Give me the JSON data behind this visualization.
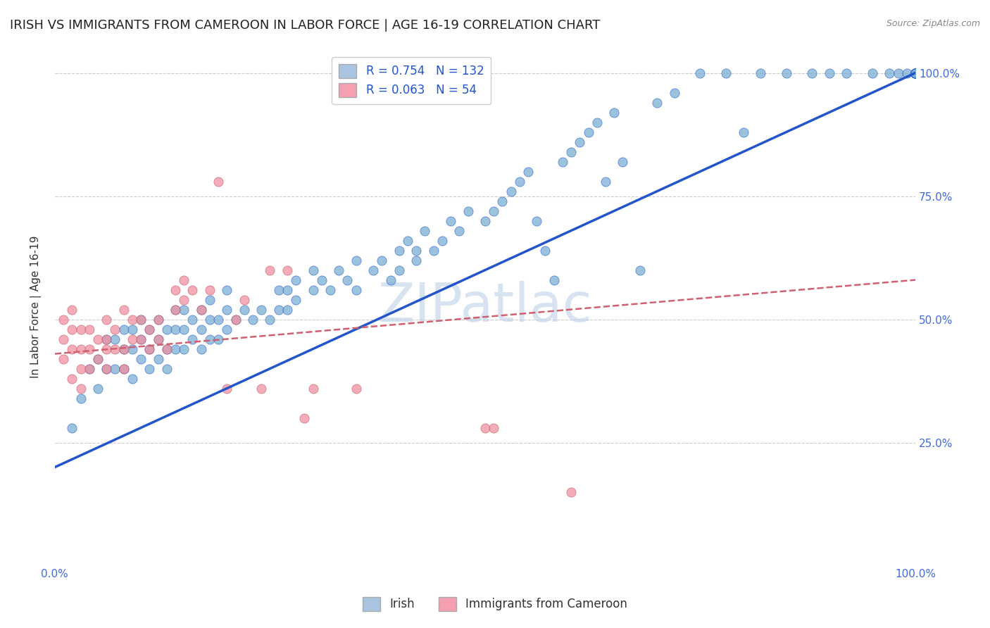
{
  "title": "IRISH VS IMMIGRANTS FROM CAMEROON IN LABOR FORCE | AGE 16-19 CORRELATION CHART",
  "source": "Source: ZipAtlas.com",
  "ylabel": "In Labor Force | Age 16-19",
  "xlim": [
    0.0,
    1.0
  ],
  "ylim": [
    0.0,
    1.05
  ],
  "ytick_labels": [
    "25.0%",
    "50.0%",
    "75.0%",
    "100.0%"
  ],
  "ytick_positions": [
    0.25,
    0.5,
    0.75,
    1.0
  ],
  "watermark": "ZIPatlас",
  "legend_irish_color": "#a8c4e0",
  "legend_cameroon_color": "#f4a0b0",
  "irish_R": "0.754",
  "irish_N": "132",
  "cameroon_R": "0.063",
  "cameroon_N": "54",
  "irish_scatter_color": "#7bafd4",
  "cameroon_scatter_color": "#f090a0",
  "irish_line_color": "#2255cc",
  "cameroon_line_color": "#d06070",
  "title_fontsize": 13,
  "axis_label_fontsize": 11,
  "tick_fontsize": 11,
  "irish_x": [
    0.02,
    0.03,
    0.04,
    0.05,
    0.05,
    0.06,
    0.06,
    0.07,
    0.07,
    0.08,
    0.08,
    0.08,
    0.09,
    0.09,
    0.09,
    0.1,
    0.1,
    0.1,
    0.11,
    0.11,
    0.11,
    0.12,
    0.12,
    0.12,
    0.13,
    0.13,
    0.13,
    0.14,
    0.14,
    0.14,
    0.15,
    0.15,
    0.15,
    0.16,
    0.16,
    0.17,
    0.17,
    0.17,
    0.18,
    0.18,
    0.18,
    0.19,
    0.19,
    0.2,
    0.2,
    0.2,
    0.21,
    0.22,
    0.23,
    0.24,
    0.25,
    0.26,
    0.26,
    0.27,
    0.27,
    0.28,
    0.28,
    0.3,
    0.3,
    0.31,
    0.32,
    0.33,
    0.34,
    0.35,
    0.35,
    0.37,
    0.38,
    0.39,
    0.4,
    0.4,
    0.41,
    0.42,
    0.42,
    0.43,
    0.44,
    0.45,
    0.46,
    0.47,
    0.48,
    0.5,
    0.51,
    0.52,
    0.53,
    0.54,
    0.55,
    0.56,
    0.57,
    0.58,
    0.59,
    0.6,
    0.61,
    0.62,
    0.63,
    0.64,
    0.65,
    0.66,
    0.68,
    0.7,
    0.72,
    0.75,
    0.78,
    0.8,
    0.82,
    0.85,
    0.88,
    0.9,
    0.92,
    0.95,
    0.97,
    0.98,
    0.99,
    1.0,
    1.0,
    1.0,
    1.0,
    1.0,
    1.0,
    1.0,
    1.0,
    1.0,
    1.0,
    1.0,
    1.0,
    1.0,
    1.0,
    1.0,
    1.0,
    1.0,
    1.0,
    1.0,
    1.0,
    1.0
  ],
  "irish_y": [
    0.28,
    0.34,
    0.4,
    0.36,
    0.42,
    0.4,
    0.46,
    0.4,
    0.46,
    0.4,
    0.44,
    0.48,
    0.38,
    0.44,
    0.48,
    0.42,
    0.46,
    0.5,
    0.4,
    0.44,
    0.48,
    0.42,
    0.46,
    0.5,
    0.4,
    0.44,
    0.48,
    0.44,
    0.48,
    0.52,
    0.44,
    0.48,
    0.52,
    0.46,
    0.5,
    0.44,
    0.48,
    0.52,
    0.46,
    0.5,
    0.54,
    0.46,
    0.5,
    0.48,
    0.52,
    0.56,
    0.5,
    0.52,
    0.5,
    0.52,
    0.5,
    0.52,
    0.56,
    0.52,
    0.56,
    0.54,
    0.58,
    0.56,
    0.6,
    0.58,
    0.56,
    0.6,
    0.58,
    0.62,
    0.56,
    0.6,
    0.62,
    0.58,
    0.64,
    0.6,
    0.66,
    0.62,
    0.64,
    0.68,
    0.64,
    0.66,
    0.7,
    0.68,
    0.72,
    0.7,
    0.72,
    0.74,
    0.76,
    0.78,
    0.8,
    0.7,
    0.64,
    0.58,
    0.82,
    0.84,
    0.86,
    0.88,
    0.9,
    0.78,
    0.92,
    0.82,
    0.6,
    0.94,
    0.96,
    1.0,
    1.0,
    0.88,
    1.0,
    1.0,
    1.0,
    1.0,
    1.0,
    1.0,
    1.0,
    1.0,
    1.0,
    1.0,
    1.0,
    1.0,
    1.0,
    1.0,
    1.0,
    1.0,
    1.0,
    1.0,
    1.0,
    1.0,
    1.0,
    1.0,
    1.0,
    1.0,
    1.0,
    1.0,
    1.0,
    1.0,
    1.0,
    1.0
  ],
  "cameroon_x": [
    0.01,
    0.01,
    0.01,
    0.02,
    0.02,
    0.02,
    0.02,
    0.03,
    0.03,
    0.03,
    0.03,
    0.04,
    0.04,
    0.04,
    0.05,
    0.05,
    0.06,
    0.06,
    0.06,
    0.06,
    0.07,
    0.07,
    0.08,
    0.08,
    0.08,
    0.09,
    0.09,
    0.1,
    0.1,
    0.11,
    0.11,
    0.12,
    0.12,
    0.13,
    0.14,
    0.14,
    0.15,
    0.15,
    0.16,
    0.17,
    0.18,
    0.19,
    0.2,
    0.21,
    0.22,
    0.24,
    0.25,
    0.27,
    0.29,
    0.3,
    0.35,
    0.5,
    0.51,
    0.6
  ],
  "cameroon_y": [
    0.42,
    0.46,
    0.5,
    0.38,
    0.44,
    0.48,
    0.52,
    0.36,
    0.4,
    0.44,
    0.48,
    0.4,
    0.44,
    0.48,
    0.42,
    0.46,
    0.4,
    0.44,
    0.46,
    0.5,
    0.44,
    0.48,
    0.4,
    0.44,
    0.52,
    0.46,
    0.5,
    0.46,
    0.5,
    0.44,
    0.48,
    0.46,
    0.5,
    0.44,
    0.52,
    0.56,
    0.54,
    0.58,
    0.56,
    0.52,
    0.56,
    0.78,
    0.36,
    0.5,
    0.54,
    0.36,
    0.6,
    0.6,
    0.3,
    0.36,
    0.36,
    0.28,
    0.28,
    0.15
  ],
  "irish_line_x": [
    0.0,
    1.0
  ],
  "irish_line_y": [
    0.2,
    1.0
  ],
  "cameroon_line_x": [
    0.0,
    1.0
  ],
  "cameroon_line_y": [
    0.43,
    0.58
  ],
  "grid_color": "#cccccc",
  "background_color": "#ffffff",
  "tick_color": "#4169e1"
}
